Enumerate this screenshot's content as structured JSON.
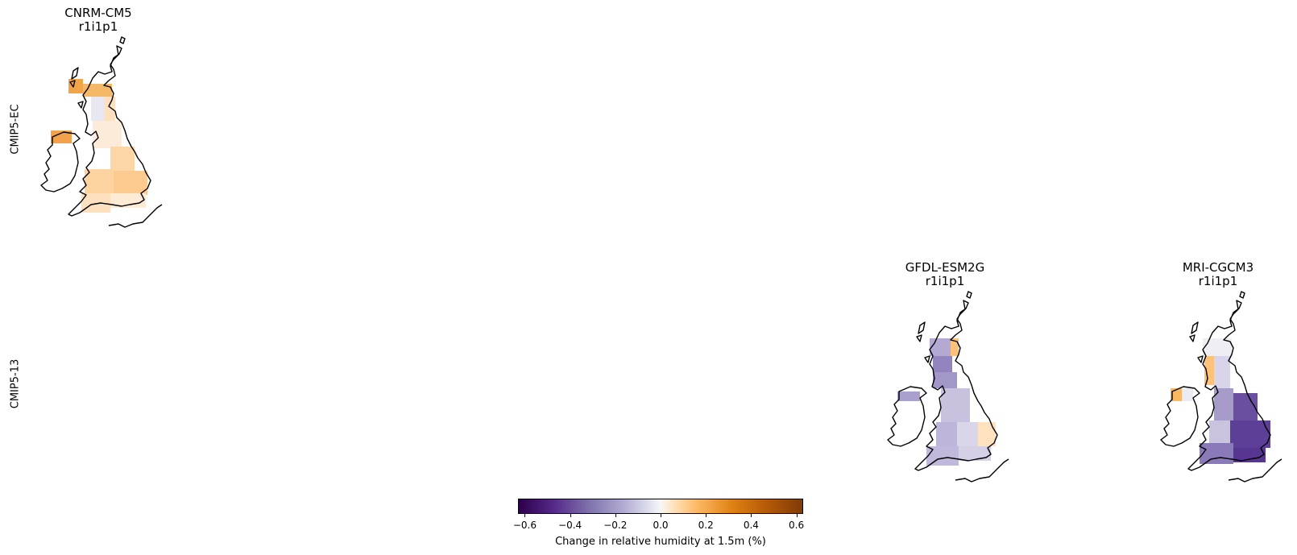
{
  "rows": [
    {
      "label": "CMIP5-EC"
    },
    {
      "label": "CMIP5-13"
    }
  ],
  "panels": [
    {
      "model": "CNRM-CM5",
      "member": "r1i1p1",
      "row": "CMIP5-EC",
      "sign": "positive"
    },
    {
      "model": "GFDL-ESM2G",
      "member": "r1i1p1",
      "row": "CMIP5-13",
      "sign": "mostly negative"
    },
    {
      "model": "MRI-CGCM3",
      "member": "r1i1p1",
      "row": "CMIP5-13",
      "sign": "strongly negative in south-east"
    }
  ],
  "colorbar": {
    "label": "Change in relative humidity at 1.5m (%)",
    "ticks": [
      "−0.6",
      "−0.4",
      "−0.2",
      "0.0",
      "0.2",
      "0.4",
      "0.6"
    ],
    "range": [
      -0.63,
      0.63
    ],
    "colormap": "PuOr_r",
    "colors": {
      "min": "#2d004b",
      "mid": "#f7f7f7",
      "max": "#7f3b08"
    }
  }
}
